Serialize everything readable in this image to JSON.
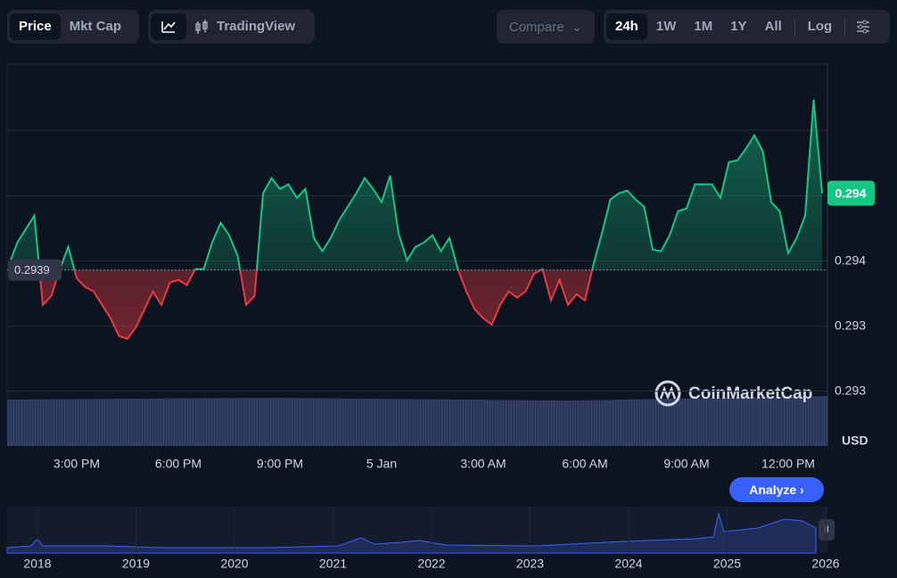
{
  "controls": {
    "price": "Price",
    "mkt_cap": "Mkt Cap",
    "tradingview": "TradingView",
    "compare": "Compare",
    "ranges": [
      "24h",
      "1W",
      "1M",
      "1Y",
      "All"
    ],
    "log": "Log",
    "analyze": "Analyze",
    "currency": "USD",
    "watermark": "CoinMarketCap"
  },
  "chart_data": {
    "type": "baseline-area",
    "categories": [
      null,
      null,
      null,
      null,
      null,
      null,
      null,
      null,
      "3:00 PM",
      null,
      null,
      null,
      null,
      null,
      null,
      null,
      null,
      null,
      null,
      null,
      "6:00 PM",
      null,
      null,
      null,
      null,
      null,
      null,
      null,
      null,
      null,
      null,
      null,
      "9:00 PM",
      null,
      null,
      null,
      null,
      null,
      null,
      null,
      null,
      null,
      null,
      null,
      "5 Jan",
      null,
      null,
      null,
      null,
      null,
      null,
      null,
      null,
      null,
      null,
      null,
      "3:00 AM",
      null,
      null,
      null,
      null,
      null,
      null,
      null,
      null,
      null,
      null,
      null,
      "6:00 AM",
      null,
      null,
      null,
      null,
      null,
      null,
      null,
      null,
      null,
      null,
      null,
      "9:00 AM",
      null,
      null,
      null,
      null,
      null,
      null,
      null,
      null,
      null,
      null,
      null,
      "12:00 PM",
      null,
      null,
      null,
      null
    ],
    "values": [
      0.293941,
      0.294112,
      0.294215,
      0.294318,
      0.293633,
      0.293701,
      0.293907,
      0.294078,
      0.293838,
      0.29377,
      0.293736,
      0.293633,
      0.29353,
      0.293393,
      0.293373,
      0.293462,
      0.293599,
      0.293736,
      0.293633,
      0.293804,
      0.293825,
      0.293784,
      0.293907,
      0.293907,
      0.294112,
      0.294263,
      0.294167,
      0.29401,
      0.293633,
      0.293701,
      0.294489,
      0.294605,
      0.294523,
      0.294558,
      0.294455,
      0.294523,
      0.294147,
      0.294044,
      0.294147,
      0.294284,
      0.294386,
      0.294489,
      0.294605,
      0.294523,
      0.294421,
      0.294626,
      0.294181,
      0.293975,
      0.294078,
      0.294112,
      0.294167,
      0.294044,
      0.294147,
      0.293907,
      0.293736,
      0.293599,
      0.29353,
      0.293482,
      0.293633,
      0.293736,
      0.293688,
      0.293736,
      0.293873,
      0.293907,
      0.293667,
      0.293825,
      0.293633,
      0.293715,
      0.293667,
      0.293941,
      0.294181,
      0.294441,
      0.294489,
      0.29451,
      0.294441,
      0.294386,
      0.294058,
      0.294044,
      0.294167,
      0.294352,
      0.294373,
      0.294558,
      0.294558,
      0.294558,
      0.294455,
      0.294729,
      0.294742,
      0.294831,
      0.294934,
      0.294811,
      0.294421,
      0.294352,
      0.29403,
      0.294147,
      0.294318,
      0.295208,
      0.29449
    ],
    "value_labels": [
      null,
      null,
      null,
      null,
      null,
      null,
      null,
      null,
      null,
      null,
      null,
      null,
      null,
      null,
      null,
      null,
      null,
      null,
      null,
      null,
      null,
      null,
      null,
      null,
      null,
      null,
      null,
      null,
      null,
      null,
      null,
      null,
      null,
      null,
      null,
      null,
      null,
      null,
      null,
      null,
      null,
      null,
      null,
      null,
      null,
      null,
      null,
      null,
      null,
      null,
      null,
      null,
      null,
      null,
      null,
      null,
      null,
      null,
      null,
      null,
      null,
      null,
      null,
      null,
      null,
      null,
      null,
      null,
      null,
      null,
      null,
      null,
      null,
      null,
      null,
      null,
      null,
      null,
      null,
      null,
      null,
      null,
      null,
      null,
      null,
      null,
      null,
      null,
      null,
      null,
      null,
      null,
      null,
      null,
      null,
      null,
      "0.294"
    ],
    "baseline": 0.2939,
    "color_up": "#16c784",
    "color_down": "#ea3943",
    "ylim": [
      0.29255,
      0.29548
    ],
    "yticks": [
      {
        "value": 0.29297,
        "label": "0.293"
      },
      {
        "value": 0.29347,
        "label": "0.293"
      },
      {
        "value": 0.29397,
        "label": "0.294"
      },
      {
        "value": 0.29447,
        "label": "0.294"
      }
    ],
    "grid": true
  },
  "navigator": {
    "years": [
      "2018",
      "2019",
      "2020",
      "2021",
      "2022",
      "2023",
      "2024",
      "2025",
      "2026"
    ]
  }
}
